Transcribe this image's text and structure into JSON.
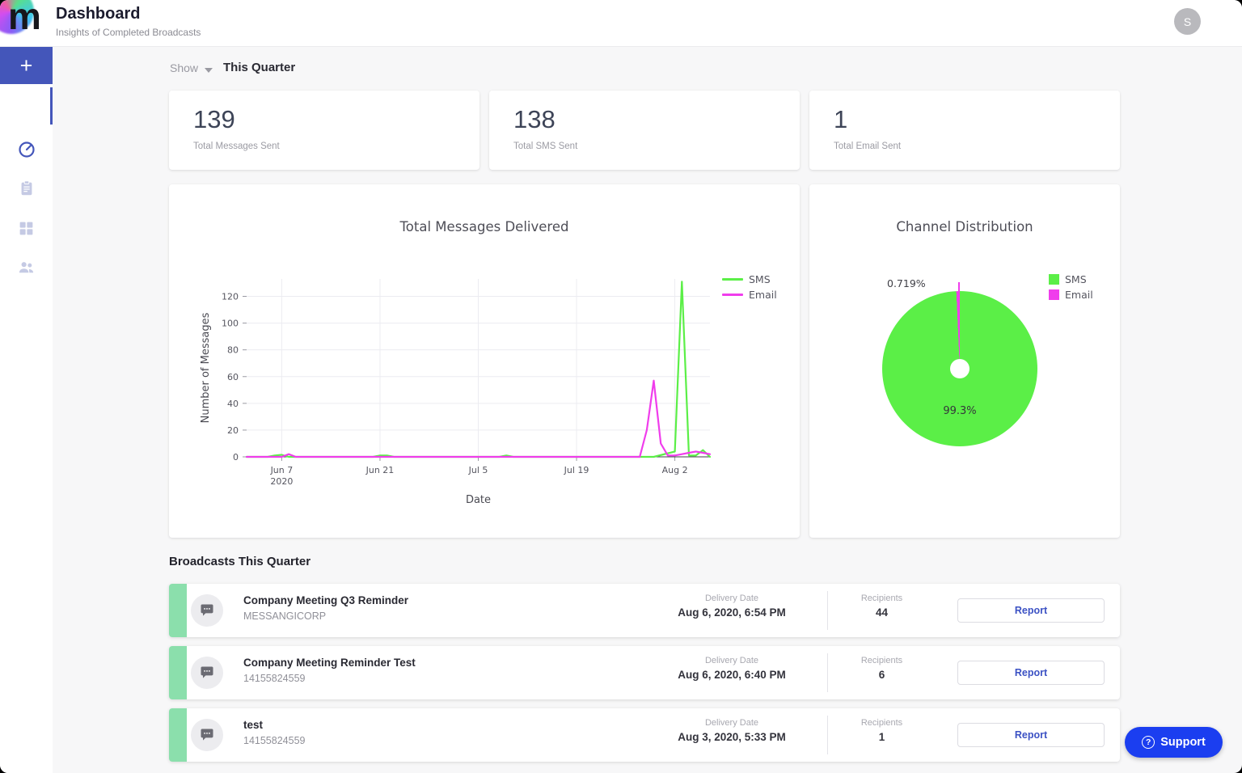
{
  "header": {
    "logo_letter": "m",
    "title": "Dashboard",
    "subtitle": "Insights of Completed Broadcasts",
    "avatar_initial": "S"
  },
  "sidebar": {
    "items": [
      {
        "name": "new-broadcast",
        "icon": "plus-icon"
      },
      {
        "name": "dashboard",
        "icon": "speedometer-icon",
        "active": true
      },
      {
        "name": "broadcasts",
        "icon": "clipboard-icon"
      },
      {
        "name": "apps",
        "icon": "grid-icon"
      },
      {
        "name": "contacts",
        "icon": "people-icon"
      }
    ],
    "bottom_icon": "gear-icon"
  },
  "filter": {
    "show_label": "Show",
    "selected": "This Quarter"
  },
  "stats": [
    {
      "value": "139",
      "label": "Total Messages Sent"
    },
    {
      "value": "138",
      "label": "Total SMS Sent"
    },
    {
      "value": "1",
      "label": "Total Email Sent"
    }
  ],
  "chart_data": [
    {
      "type": "line",
      "title": "Total Messages Delivered",
      "xlabel": "Date",
      "ylabel": "Number of Messages",
      "x_unit": "days since Jun 2, 2020",
      "xlim": [
        0,
        66
      ],
      "ylim": [
        0,
        133
      ],
      "yticks": [
        0,
        20,
        40,
        60,
        80,
        100,
        120
      ],
      "xticks": [
        {
          "pos": 5,
          "label": "Jun 7",
          "sublabel": "2020"
        },
        {
          "pos": 19,
          "label": "Jun 21"
        },
        {
          "pos": 33,
          "label": "Jul 5"
        },
        {
          "pos": 47,
          "label": "Jul 19"
        },
        {
          "pos": 61,
          "label": "Aug 2"
        }
      ],
      "grid": true,
      "legend_position": "top-right",
      "series": [
        {
          "name": "SMS",
          "color": "#5BEF47",
          "points": [
            [
              0,
              0
            ],
            [
              3,
              0
            ],
            [
              4,
              1
            ],
            [
              5,
              1.5
            ],
            [
              6,
              0
            ],
            [
              18,
              0
            ],
            [
              19,
              1
            ],
            [
              20,
              1
            ],
            [
              21,
              0
            ],
            [
              36,
              0
            ],
            [
              37,
              1
            ],
            [
              38,
              0
            ],
            [
              58,
              0
            ],
            [
              61,
              4
            ],
            [
              62,
              131
            ],
            [
              63,
              1
            ],
            [
              64,
              1
            ],
            [
              65,
              5
            ],
            [
              66,
              0
            ]
          ]
        },
        {
          "name": "Email",
          "color": "#F03DEC",
          "points": [
            [
              0,
              0
            ],
            [
              5,
              0
            ],
            [
              6,
              2
            ],
            [
              7,
              0
            ],
            [
              55,
              0
            ],
            [
              56,
              0
            ],
            [
              57,
              20
            ],
            [
              58,
              57
            ],
            [
              59,
              10
            ],
            [
              60,
              1
            ],
            [
              61,
              1
            ],
            [
              62,
              2
            ],
            [
              63,
              3
            ],
            [
              64,
              4
            ],
            [
              65,
              3
            ],
            [
              66,
              2
            ]
          ]
        }
      ]
    },
    {
      "type": "pie",
      "title": "Channel Distribution",
      "donut_hole": true,
      "legend_position": "top-right",
      "slices": [
        {
          "name": "SMS",
          "value": 99.3,
          "label": "99.3%",
          "color": "#5BEF47"
        },
        {
          "name": "Email",
          "value": 0.719,
          "label": "0.719%",
          "color": "#F03DEC"
        }
      ]
    }
  ],
  "broadcasts": {
    "heading": "Broadcasts This Quarter",
    "delivery_label": "Delivery Date",
    "recipients_label": "Recipients",
    "report_label": "Report",
    "rows": [
      {
        "title": "Company Meeting Q3 Reminder",
        "sender": "MESSANGICORP",
        "delivery": "Aug 6, 2020, 6:54 PM",
        "recipients": "44"
      },
      {
        "title": "Company Meeting Reminder Test",
        "sender": "14155824559",
        "delivery": "Aug 6, 2020, 6:40 PM",
        "recipients": "6"
      },
      {
        "title": "test",
        "sender": "14155824559",
        "delivery": "Aug 3, 2020, 5:33 PM",
        "recipients": "1"
      }
    ]
  },
  "support": {
    "label": "Support"
  },
  "colors": {
    "accent": "#4456BA",
    "sms": "#5BEF47",
    "email": "#F03DEC",
    "support_blue": "#1B3EF0",
    "row_accent": "#8BDFAC",
    "report_text": "#3C52C4"
  }
}
